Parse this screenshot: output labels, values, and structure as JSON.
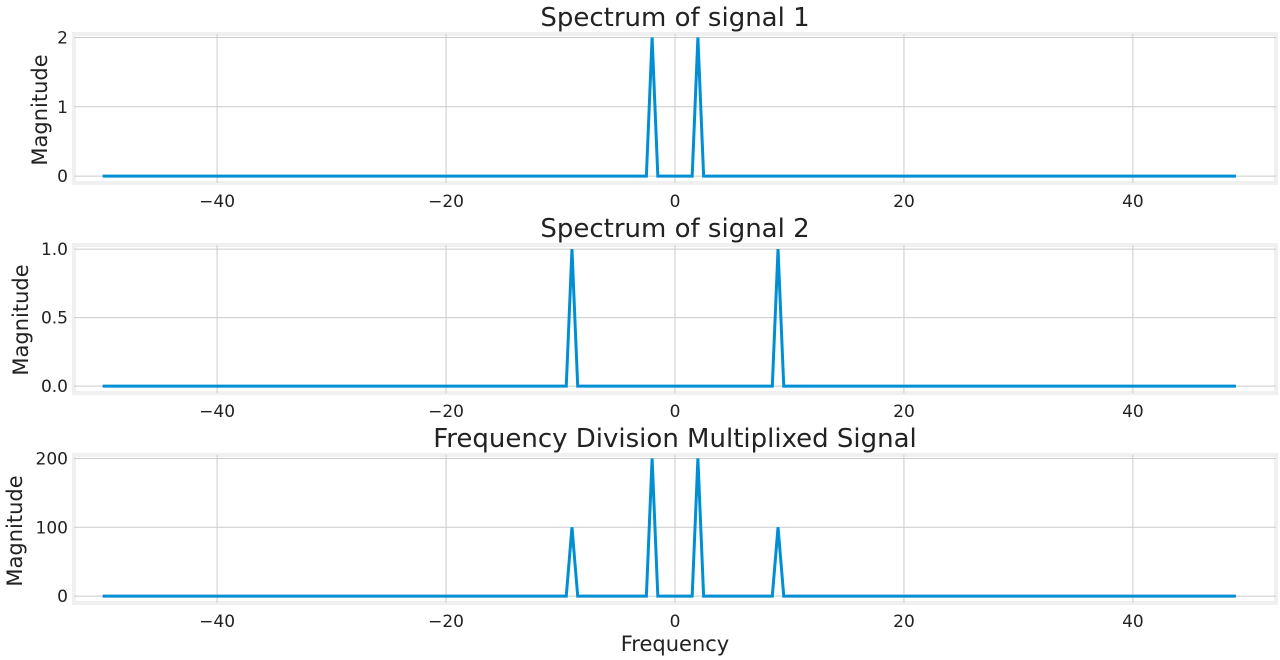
{
  "chart_data": [
    {
      "type": "line",
      "title": "Spectrum of signal 1",
      "xlabel": "",
      "ylabel": "Magnitude",
      "xlim": [
        -52.5,
        52.5
      ],
      "ylim": [
        -0.1,
        2.05
      ],
      "xticks": [
        -40,
        -20,
        0,
        20,
        40
      ],
      "xtick_labels": [
        "−40",
        "−20",
        "0",
        "20",
        "40"
      ],
      "yticks": [
        0,
        1,
        2
      ],
      "ytick_labels": [
        "0",
        "1",
        "2"
      ],
      "grid": true,
      "color": "#008fd5",
      "x": [
        -50,
        -2.5,
        -2,
        -1.5,
        1.5,
        2,
        2.5,
        49
      ],
      "y": [
        0,
        0,
        2,
        0,
        0,
        2,
        0,
        0
      ]
    },
    {
      "type": "line",
      "title": "Spectrum of signal 2",
      "xlabel": "",
      "ylabel": "Magnitude",
      "xlim": [
        -52.5,
        52.5
      ],
      "ylim": [
        -0.05,
        1.03
      ],
      "xticks": [
        -40,
        -20,
        0,
        20,
        40
      ],
      "xtick_labels": [
        "−40",
        "−20",
        "0",
        "20",
        "40"
      ],
      "yticks": [
        0,
        0.5,
        1
      ],
      "ytick_labels": [
        "0.0",
        "0.5",
        "1.0"
      ],
      "grid": true,
      "color": "#008fd5",
      "x": [
        -50,
        -9.5,
        -9,
        -8.5,
        8.5,
        9,
        9.5,
        49
      ],
      "y": [
        0,
        0,
        1,
        0,
        0,
        1,
        0,
        0
      ]
    },
    {
      "type": "line",
      "title": "Frequency Division Multiplixed Signal",
      "xlabel": "Frequency",
      "ylabel": "Magnitude",
      "xlim": [
        -52.5,
        52.5
      ],
      "ylim": [
        -10,
        205
      ],
      "xticks": [
        -40,
        -20,
        0,
        20,
        40
      ],
      "xtick_labels": [
        "−40",
        "−20",
        "0",
        "20",
        "40"
      ],
      "yticks": [
        0,
        100,
        200
      ],
      "ytick_labels": [
        "0",
        "100",
        "200"
      ],
      "grid": true,
      "color": "#008fd5",
      "x": [
        -50,
        -9.5,
        -9,
        -8.5,
        -2.5,
        -2,
        -1.5,
        1.5,
        2,
        2.5,
        8.5,
        9,
        9.5,
        49
      ],
      "y": [
        0,
        0,
        100,
        0,
        0,
        200,
        0,
        0,
        200,
        0,
        0,
        100,
        0,
        0
      ]
    }
  ]
}
